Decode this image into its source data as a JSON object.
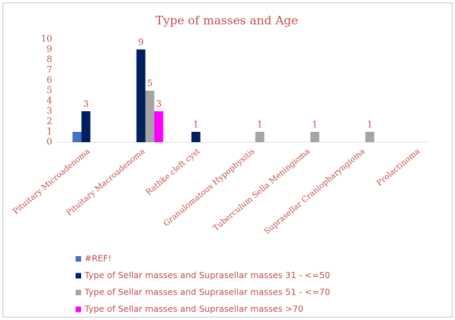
{
  "chart_data": {
    "type": "bar",
    "title": "Type of masses and Age",
    "categories": [
      "Pituitary Microadenoma",
      "Pituitary Macroadenoma",
      "Rathke cleft cyst",
      "Granulomatous Hypophysitis",
      "Tuberculum Sella Meningioma",
      "Suprasellar Craniopharyngioma",
      "Prolactinoma"
    ],
    "series": [
      {
        "name": "#REF!",
        "color": "#4472c4",
        "values": [
          1,
          null,
          null,
          null,
          null,
          null,
          null
        ]
      },
      {
        "name": "Type of Sellar masses and Suprasellar masses 31 - <=50",
        "color": "#002060",
        "values": [
          3,
          9,
          1,
          null,
          null,
          null,
          null
        ],
        "value_labels": [
          "3",
          "9",
          "1",
          null,
          null,
          null,
          null
        ]
      },
      {
        "name": "Type of Sellar masses and Suprasellar masses 51 - <=70",
        "color": "#a5a5a5",
        "values": [
          null,
          5,
          null,
          1,
          1,
          1,
          null
        ],
        "value_labels": [
          null,
          "5",
          null,
          "1",
          "1",
          "1",
          null
        ]
      },
      {
        "name": "Type of Sellar masses and Suprasellar masses >70",
        "color": "#ff00ff",
        "values": [
          null,
          3,
          null,
          null,
          null,
          null,
          null
        ],
        "value_labels": [
          null,
          "3",
          null,
          null,
          null,
          null,
          null
        ]
      }
    ],
    "ylim": [
      0,
      10
    ],
    "yticks": [
      0,
      1,
      2,
      3,
      4,
      5,
      6,
      7,
      8,
      9,
      10
    ],
    "grid": false
  }
}
